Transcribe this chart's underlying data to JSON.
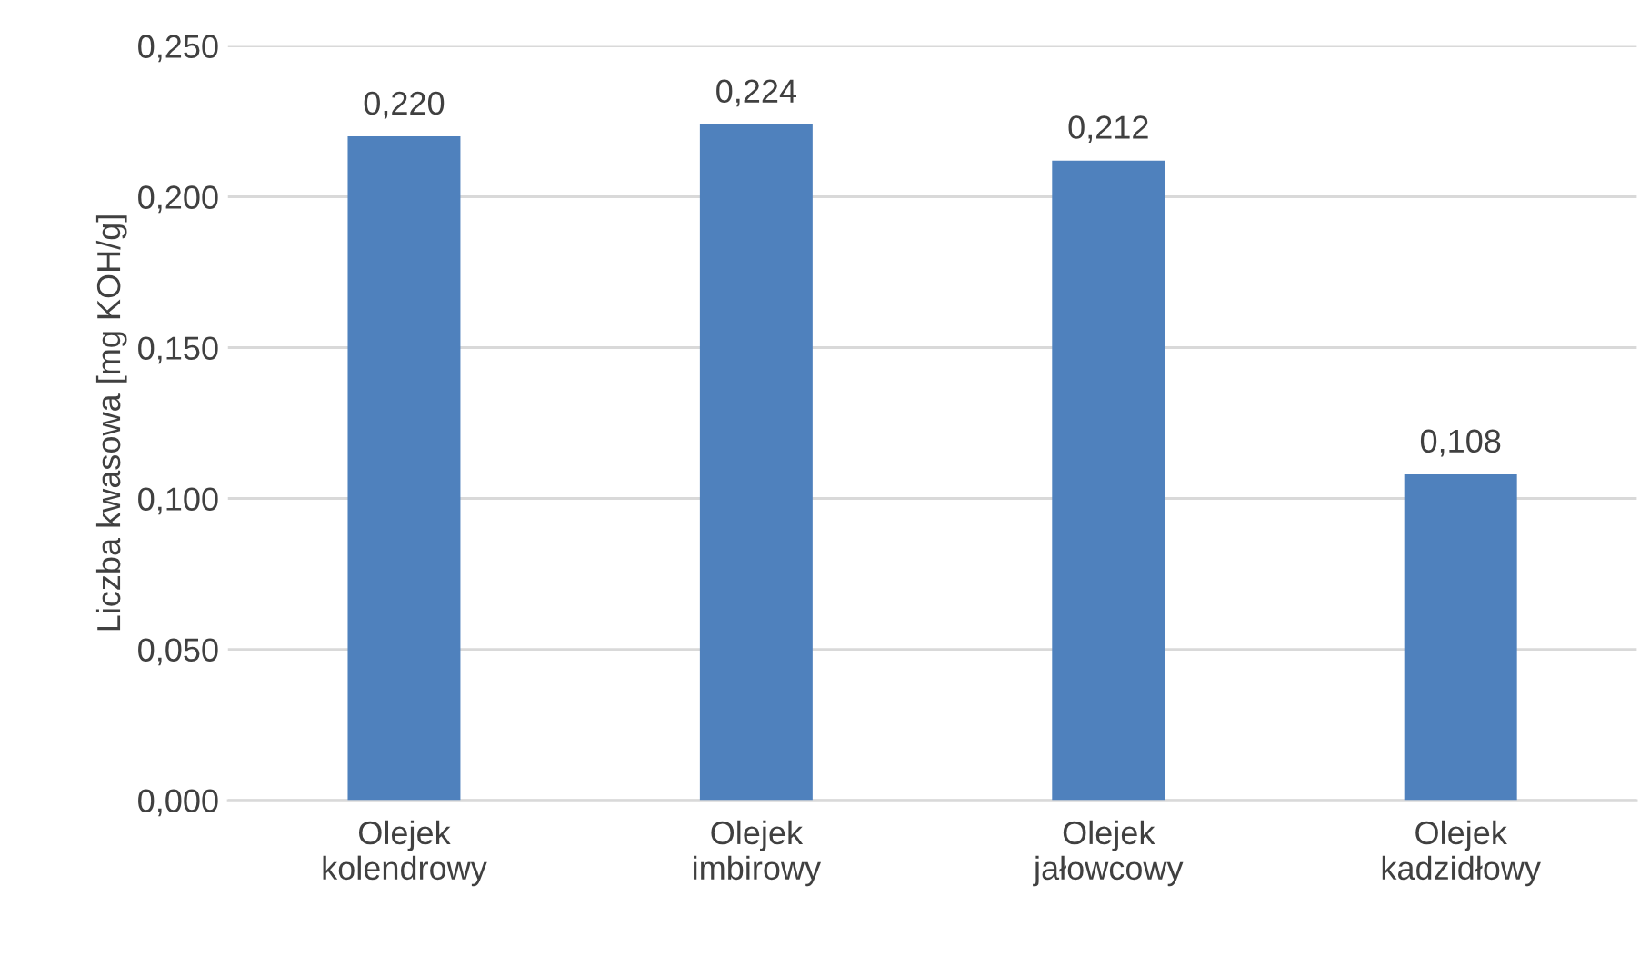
{
  "chart_data": {
    "type": "bar",
    "ylabel": "Liczba kwasowa [mg KOH/g]",
    "categories": [
      "Olejek kolendrowy",
      "Olejek imbirowy",
      "Olejek jałowcowy",
      "Olejek kadzidłowy"
    ],
    "values": [
      0.22,
      0.224,
      0.212,
      0.108
    ],
    "value_labels": [
      "0,220",
      "0,224",
      "0,212",
      "0,108"
    ],
    "color": "#4f81bd",
    "ylim": [
      0,
      0.25
    ],
    "yticks": [
      {
        "value": 0,
        "label": "0,000"
      },
      {
        "value": 0.05,
        "label": "0,050"
      },
      {
        "value": 0.1,
        "label": "0,100"
      },
      {
        "value": 0.15,
        "label": "0,150"
      },
      {
        "value": 0.2,
        "label": "0,200"
      },
      {
        "value": 0.25,
        "label": "0,250"
      }
    ],
    "grid": "y",
    "legend": false
  }
}
